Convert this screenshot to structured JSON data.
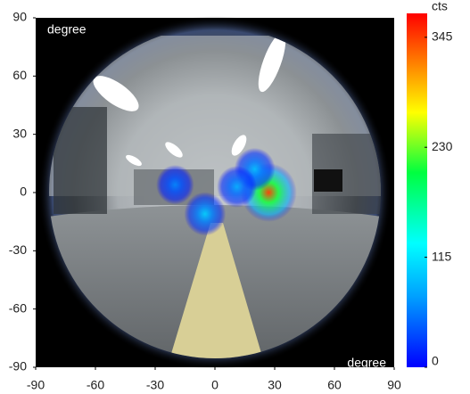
{
  "chart_data": {
    "type": "heatmap",
    "xlim": [
      -90,
      90
    ],
    "ylim": [
      -90,
      90
    ],
    "xticks": [
      -90,
      -60,
      -30,
      0,
      30,
      60,
      90
    ],
    "yticks": [
      -90,
      -60,
      -30,
      0,
      30,
      60,
      90
    ],
    "annotations": [
      "degree",
      "degree"
    ],
    "colorbar": {
      "label": "cts",
      "lim": [
        0,
        370
      ],
      "ticks": [
        0,
        115,
        230,
        345
      ]
    },
    "x": [
      27,
      -5,
      20,
      11,
      -20
    ],
    "y": [
      0,
      -11,
      12,
      3,
      4
    ],
    "values": [
      345,
      100,
      90,
      80,
      60
    ]
  }
}
